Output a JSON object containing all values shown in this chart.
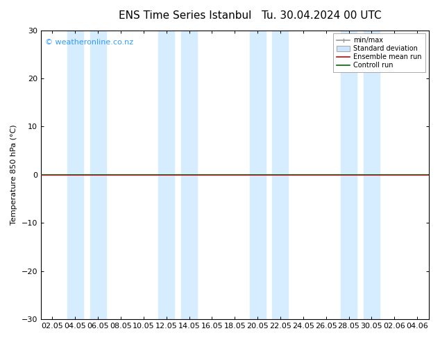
{
  "title": "ENS Time Series Istanbul",
  "subtitle": "Tu. 30.04.2024 00 UTC",
  "ylabel": "Temperature 850 hPa (°C)",
  "watermark": "© weatheronline.co.nz",
  "watermark_color": "#3399ff",
  "ylim": [
    -30,
    30
  ],
  "yticks": [
    -30,
    -20,
    -10,
    0,
    10,
    20,
    30
  ],
  "x_labels": [
    "02.05",
    "04.05",
    "06.05",
    "08.05",
    "10.05",
    "12.05",
    "14.05",
    "16.05",
    "18.05",
    "20.05",
    "22.05",
    "24.05",
    "26.05",
    "28.05",
    "30.05",
    "02.06",
    "04.06"
  ],
  "n_xticks": 17,
  "background_color": "#ffffff",
  "plot_bg_color": "#ffffff",
  "shaded_band_color": "#d6ecff",
  "shaded_band_alpha": 1.0,
  "control_run_value": 0.0,
  "ensemble_mean_value": 0.0,
  "control_run_color": "#006600",
  "ensemble_mean_color": "#cc0000",
  "zero_line_color": "#006600",
  "shaded_columns": [
    1,
    2,
    5,
    6,
    9,
    10,
    13,
    14
  ],
  "legend_minmax_color": "#999999",
  "legend_std_color": "#cce5ff",
  "title_fontsize": 11,
  "label_fontsize": 8,
  "tick_fontsize": 8
}
